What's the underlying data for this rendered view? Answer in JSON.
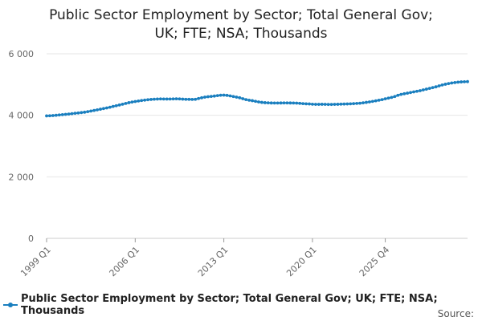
{
  "chart_data": {
    "type": "line",
    "title_lines": [
      "Public Sector Employment by Sector; Total General Gov;",
      "UK; FTE; NSA; Thousands"
    ],
    "xlabel": "",
    "ylabel": "",
    "ylim": [
      0,
      6000
    ],
    "yticks": [
      0,
      2000,
      4000,
      6000
    ],
    "ytick_labels": [
      "0",
      "2 000",
      "4 000",
      "6 000"
    ],
    "xticks": [
      "1999 Q1",
      "2006 Q1",
      "2013 Q1",
      "2020 Q1",
      "2025 Q4"
    ],
    "grid": true,
    "legend_position": "bottom",
    "color": "#1a7fbf",
    "series": [
      {
        "name": "Public Sector Employment by Sector; Total General Gov; UK; FTE; NSA; Thousands",
        "start": "1999 Q1",
        "values": [
          3980,
          3985,
          3992,
          4000,
          4010,
          4020,
          4030,
          4040,
          4052,
          4065,
          4075,
          4088,
          4100,
          4118,
          4138,
          4158,
          4178,
          4198,
          4218,
          4240,
          4262,
          4288,
          4310,
          4335,
          4360,
          4385,
          4410,
          4430,
          4448,
          4465,
          4480,
          4492,
          4505,
          4515,
          4522,
          4528,
          4532,
          4530,
          4528,
          4530,
          4533,
          4535,
          4532,
          4525,
          4520,
          4518,
          4516,
          4520,
          4545,
          4570,
          4590,
          4605,
          4615,
          4625,
          4640,
          4652,
          4655,
          4648,
          4630,
          4610,
          4590,
          4570,
          4540,
          4510,
          4490,
          4475,
          4455,
          4435,
          4420,
          4410,
          4405,
          4400,
          4398,
          4398,
          4400,
          4402,
          4402,
          4400,
          4398,
          4395,
          4388,
          4380,
          4372,
          4368,
          4360,
          4355,
          4355,
          4358,
          4355,
          4352,
          4352,
          4355,
          4358,
          4362,
          4365,
          4368,
          4372,
          4378,
          4385,
          4392,
          4405,
          4420,
          4435,
          4452,
          4470,
          4490,
          4510,
          4535,
          4558,
          4582,
          4610,
          4650,
          4680,
          4700,
          4720,
          4740,
          4760,
          4780,
          4800,
          4825,
          4850,
          4875,
          4900,
          4925,
          4955,
          4985,
          5010,
          5030,
          5050,
          5065,
          5078,
          5085,
          5090,
          5095
        ]
      }
    ]
  },
  "footer": {
    "source_label": "Source:"
  }
}
